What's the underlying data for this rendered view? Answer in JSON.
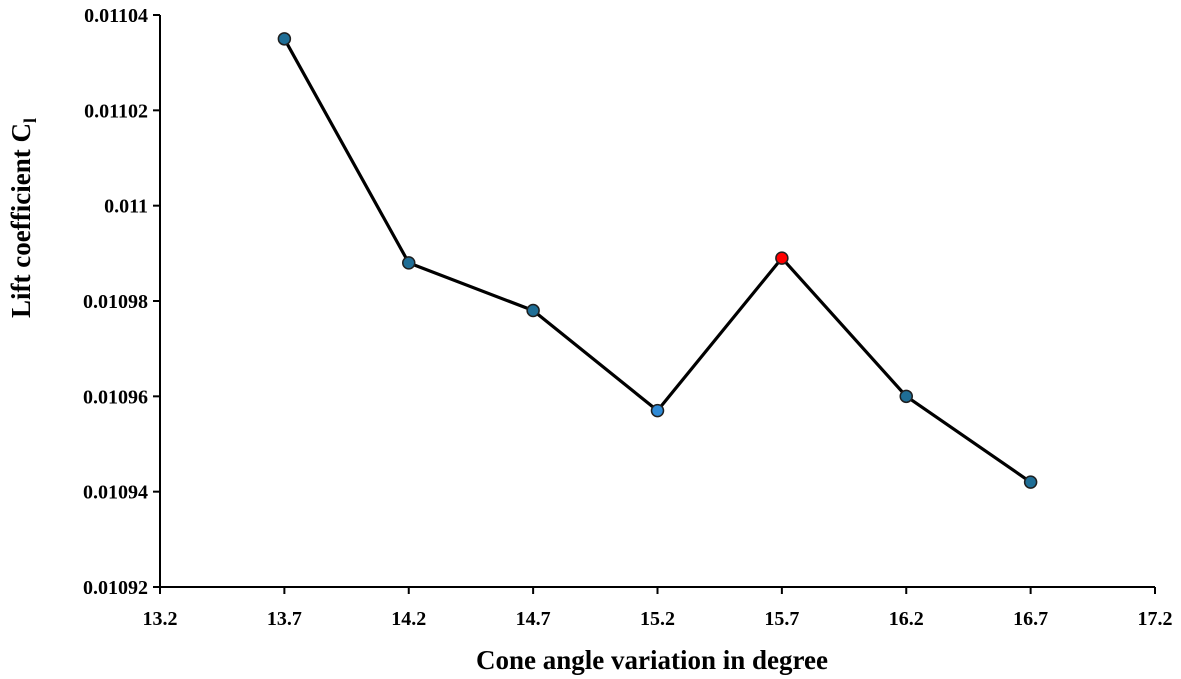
{
  "chart_data": {
    "type": "line",
    "title": "",
    "xlabel": "Cone angle variation in degree",
    "ylabel_main": "Lift coefficient C",
    "ylabel_sub": "l",
    "xlim": [
      13.2,
      17.2
    ],
    "ylim": [
      0.01092,
      0.01104
    ],
    "x_ticks": [
      13.2,
      13.7,
      14.2,
      14.7,
      15.2,
      15.7,
      16.2,
      16.7,
      17.2
    ],
    "x_tick_labels": [
      "13.2",
      "13.7",
      "14.2",
      "14.7",
      "15.2",
      "15.7",
      "16.2",
      "16.7",
      "17.2"
    ],
    "y_ticks": [
      0.01092,
      0.01094,
      0.01096,
      0.01098,
      0.011,
      0.01102,
      0.01104
    ],
    "y_tick_labels": [
      "0.01092",
      "0.01094",
      "0.01096",
      "0.01098",
      "0.011",
      "0.01102",
      "0.01104"
    ],
    "grid": false,
    "series": [
      {
        "name": "Lift coefficient",
        "x": [
          13.7,
          14.2,
          14.7,
          15.2,
          15.7,
          16.2,
          16.7
        ],
        "y": [
          0.011035,
          0.010988,
          0.010978,
          0.010957,
          0.010989,
          0.01096,
          0.010942
        ],
        "marker_colors": [
          "#1f6e96",
          "#1f6e96",
          "#1f6e96",
          "#2f8ad6",
          "#ff0000",
          "#1f6e96",
          "#1f6e96"
        ],
        "line_color": "#000000"
      }
    ]
  }
}
